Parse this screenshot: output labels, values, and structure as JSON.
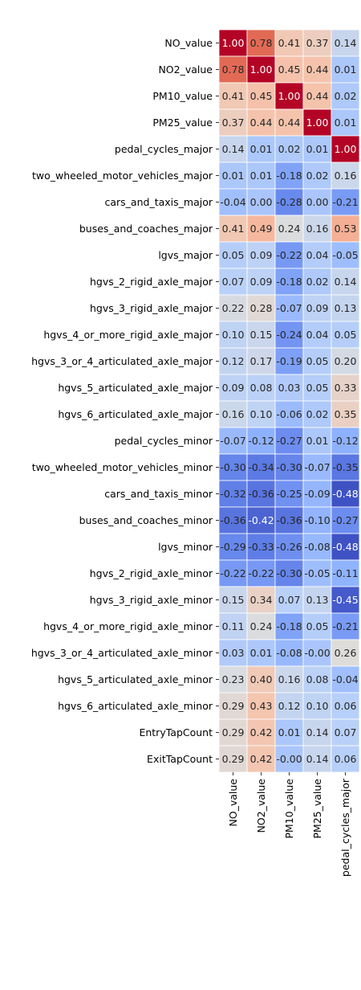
{
  "chart_data": {
    "type": "heatmap",
    "title": "",
    "xlabel": "",
    "ylabel": "",
    "colormap": "coolwarm",
    "vmin": -0.5,
    "vmax": 1.0,
    "colorbar": false,
    "grid_line_color": "#ffffff",
    "columns": [
      "NO_value",
      "NO2_value",
      "PM10_value",
      "PM25_value",
      "pedal_cycles_major"
    ],
    "rows": [
      "NO_value",
      "NO2_value",
      "PM10_value",
      "PM25_value",
      "pedal_cycles_major",
      "two_wheeled_motor_vehicles_major",
      "cars_and_taxis_major",
      "buses_and_coaches_major",
      "lgvs_major",
      "hgvs_2_rigid_axle_major",
      "hgvs_3_rigid_axle_major",
      "hgvs_4_or_more_rigid_axle_major",
      "hgvs_3_or_4_articulated_axle_major",
      "hgvs_5_articulated_axle_major",
      "hgvs_6_articulated_axle_major",
      "pedal_cycles_minor",
      "two_wheeled_motor_vehicles_minor",
      "cars_and_taxis_minor",
      "buses_and_coaches_minor",
      "lgvs_minor",
      "hgvs_2_rigid_axle_minor",
      "hgvs_3_rigid_axle_minor",
      "hgvs_4_or_more_rigid_axle_minor",
      "hgvs_3_or_4_articulated_axle_minor",
      "hgvs_5_articulated_axle_minor",
      "hgvs_6_articulated_axle_minor",
      "EntryTapCount",
      "ExitTapCount"
    ],
    "values": [
      [
        1.0,
        0.78,
        0.41,
        0.37,
        0.14
      ],
      [
        0.78,
        1.0,
        0.45,
        0.44,
        0.01
      ],
      [
        0.41,
        0.45,
        1.0,
        0.44,
        0.02
      ],
      [
        0.37,
        0.44,
        0.44,
        1.0,
        0.01
      ],
      [
        0.14,
        0.01,
        0.02,
        0.01,
        1.0
      ],
      [
        0.01,
        0.01,
        -0.18,
        0.02,
        0.16
      ],
      [
        -0.04,
        0.0,
        -0.28,
        0.0,
        -0.21
      ],
      [
        0.41,
        0.49,
        0.24,
        0.16,
        0.53
      ],
      [
        0.05,
        0.09,
        -0.22,
        0.04,
        -0.05
      ],
      [
        0.07,
        0.09,
        -0.18,
        0.02,
        0.14
      ],
      [
        0.22,
        0.28,
        -0.07,
        0.09,
        0.13
      ],
      [
        0.1,
        0.15,
        -0.24,
        0.04,
        0.05
      ],
      [
        0.12,
        0.17,
        -0.19,
        0.05,
        0.2
      ],
      [
        0.09,
        0.08,
        0.03,
        0.05,
        0.33
      ],
      [
        0.16,
        0.1,
        -0.06,
        0.02,
        0.35
      ],
      [
        -0.07,
        -0.12,
        -0.27,
        0.01,
        -0.12
      ],
      [
        -0.3,
        -0.34,
        -0.3,
        -0.07,
        -0.35
      ],
      [
        -0.32,
        -0.36,
        -0.25,
        -0.09,
        -0.48
      ],
      [
        -0.36,
        -0.42,
        -0.36,
        -0.1,
        -0.27
      ],
      [
        -0.29,
        -0.33,
        -0.26,
        -0.08,
        -0.48
      ],
      [
        -0.22,
        -0.22,
        -0.3,
        -0.05,
        -0.11
      ],
      [
        0.15,
        0.34,
        0.07,
        0.13,
        -0.45
      ],
      [
        0.11,
        0.24,
        -0.18,
        0.05,
        -0.21
      ],
      [
        0.03,
        0.01,
        -0.08,
        -0.0,
        0.26
      ],
      [
        0.23,
        0.4,
        0.16,
        0.08,
        -0.04
      ],
      [
        0.29,
        0.43,
        0.12,
        0.1,
        0.06
      ],
      [
        0.29,
        0.42,
        0.01,
        0.14,
        0.07
      ],
      [
        0.29,
        0.42,
        -0.0,
        0.14,
        0.06
      ]
    ],
    "display_labels": [
      [
        "1.00",
        "0.78",
        "0.41",
        "0.37",
        "0.14"
      ],
      [
        "0.78",
        "1.00",
        "0.45",
        "0.44",
        "0.01"
      ],
      [
        "0.41",
        "0.45",
        "1.00",
        "0.44",
        "0.02"
      ],
      [
        "0.37",
        "0.44",
        "0.44",
        "1.00",
        "0.01"
      ],
      [
        "0.14",
        "0.01",
        "0.02",
        "0.01",
        "1.00"
      ],
      [
        "0.01",
        "0.01",
        "-0.18",
        "0.02",
        "0.16"
      ],
      [
        "-0.04",
        "0.00",
        "-0.28",
        "0.00",
        "-0.21"
      ],
      [
        "0.41",
        "0.49",
        "0.24",
        "0.16",
        "0.53"
      ],
      [
        "0.05",
        "0.09",
        "-0.22",
        "0.04",
        "-0.05"
      ],
      [
        "0.07",
        "0.09",
        "-0.18",
        "0.02",
        "0.14"
      ],
      [
        "0.22",
        "0.28",
        "-0.07",
        "0.09",
        "0.13"
      ],
      [
        "0.10",
        "0.15",
        "-0.24",
        "0.04",
        "0.05"
      ],
      [
        "0.12",
        "0.17",
        "-0.19",
        "0.05",
        "0.20"
      ],
      [
        "0.09",
        "0.08",
        "0.03",
        "0.05",
        "0.33"
      ],
      [
        "0.16",
        "0.10",
        "-0.06",
        "0.02",
        "0.35"
      ],
      [
        "-0.07",
        "-0.12",
        "-0.27",
        "0.01",
        "-0.12"
      ],
      [
        "-0.30",
        "-0.34",
        "-0.30",
        "-0.07",
        "-0.35"
      ],
      [
        "-0.32",
        "-0.36",
        "-0.25",
        "-0.09",
        "-0.48"
      ],
      [
        "-0.36",
        "-0.42",
        "-0.36",
        "-0.10",
        "-0.27"
      ],
      [
        "-0.29",
        "-0.33",
        "-0.26",
        "-0.08",
        "-0.48"
      ],
      [
        "-0.22",
        "-0.22",
        "-0.30",
        "-0.05",
        "-0.11"
      ],
      [
        "0.15",
        "0.34",
        "0.07",
        "0.13",
        "-0.45"
      ],
      [
        "0.11",
        "0.24",
        "-0.18",
        "0.05",
        "-0.21"
      ],
      [
        "0.03",
        "0.01",
        "-0.08",
        "-0.00",
        "0.26"
      ],
      [
        "0.23",
        "0.40",
        "0.16",
        "0.08",
        "-0.04"
      ],
      [
        "0.29",
        "0.43",
        "0.12",
        "0.10",
        "0.06"
      ],
      [
        "0.29",
        "0.42",
        "0.01",
        "0.14",
        "0.07"
      ],
      [
        "0.29",
        "0.42",
        "-0.00",
        "0.14",
        "0.06"
      ]
    ]
  }
}
